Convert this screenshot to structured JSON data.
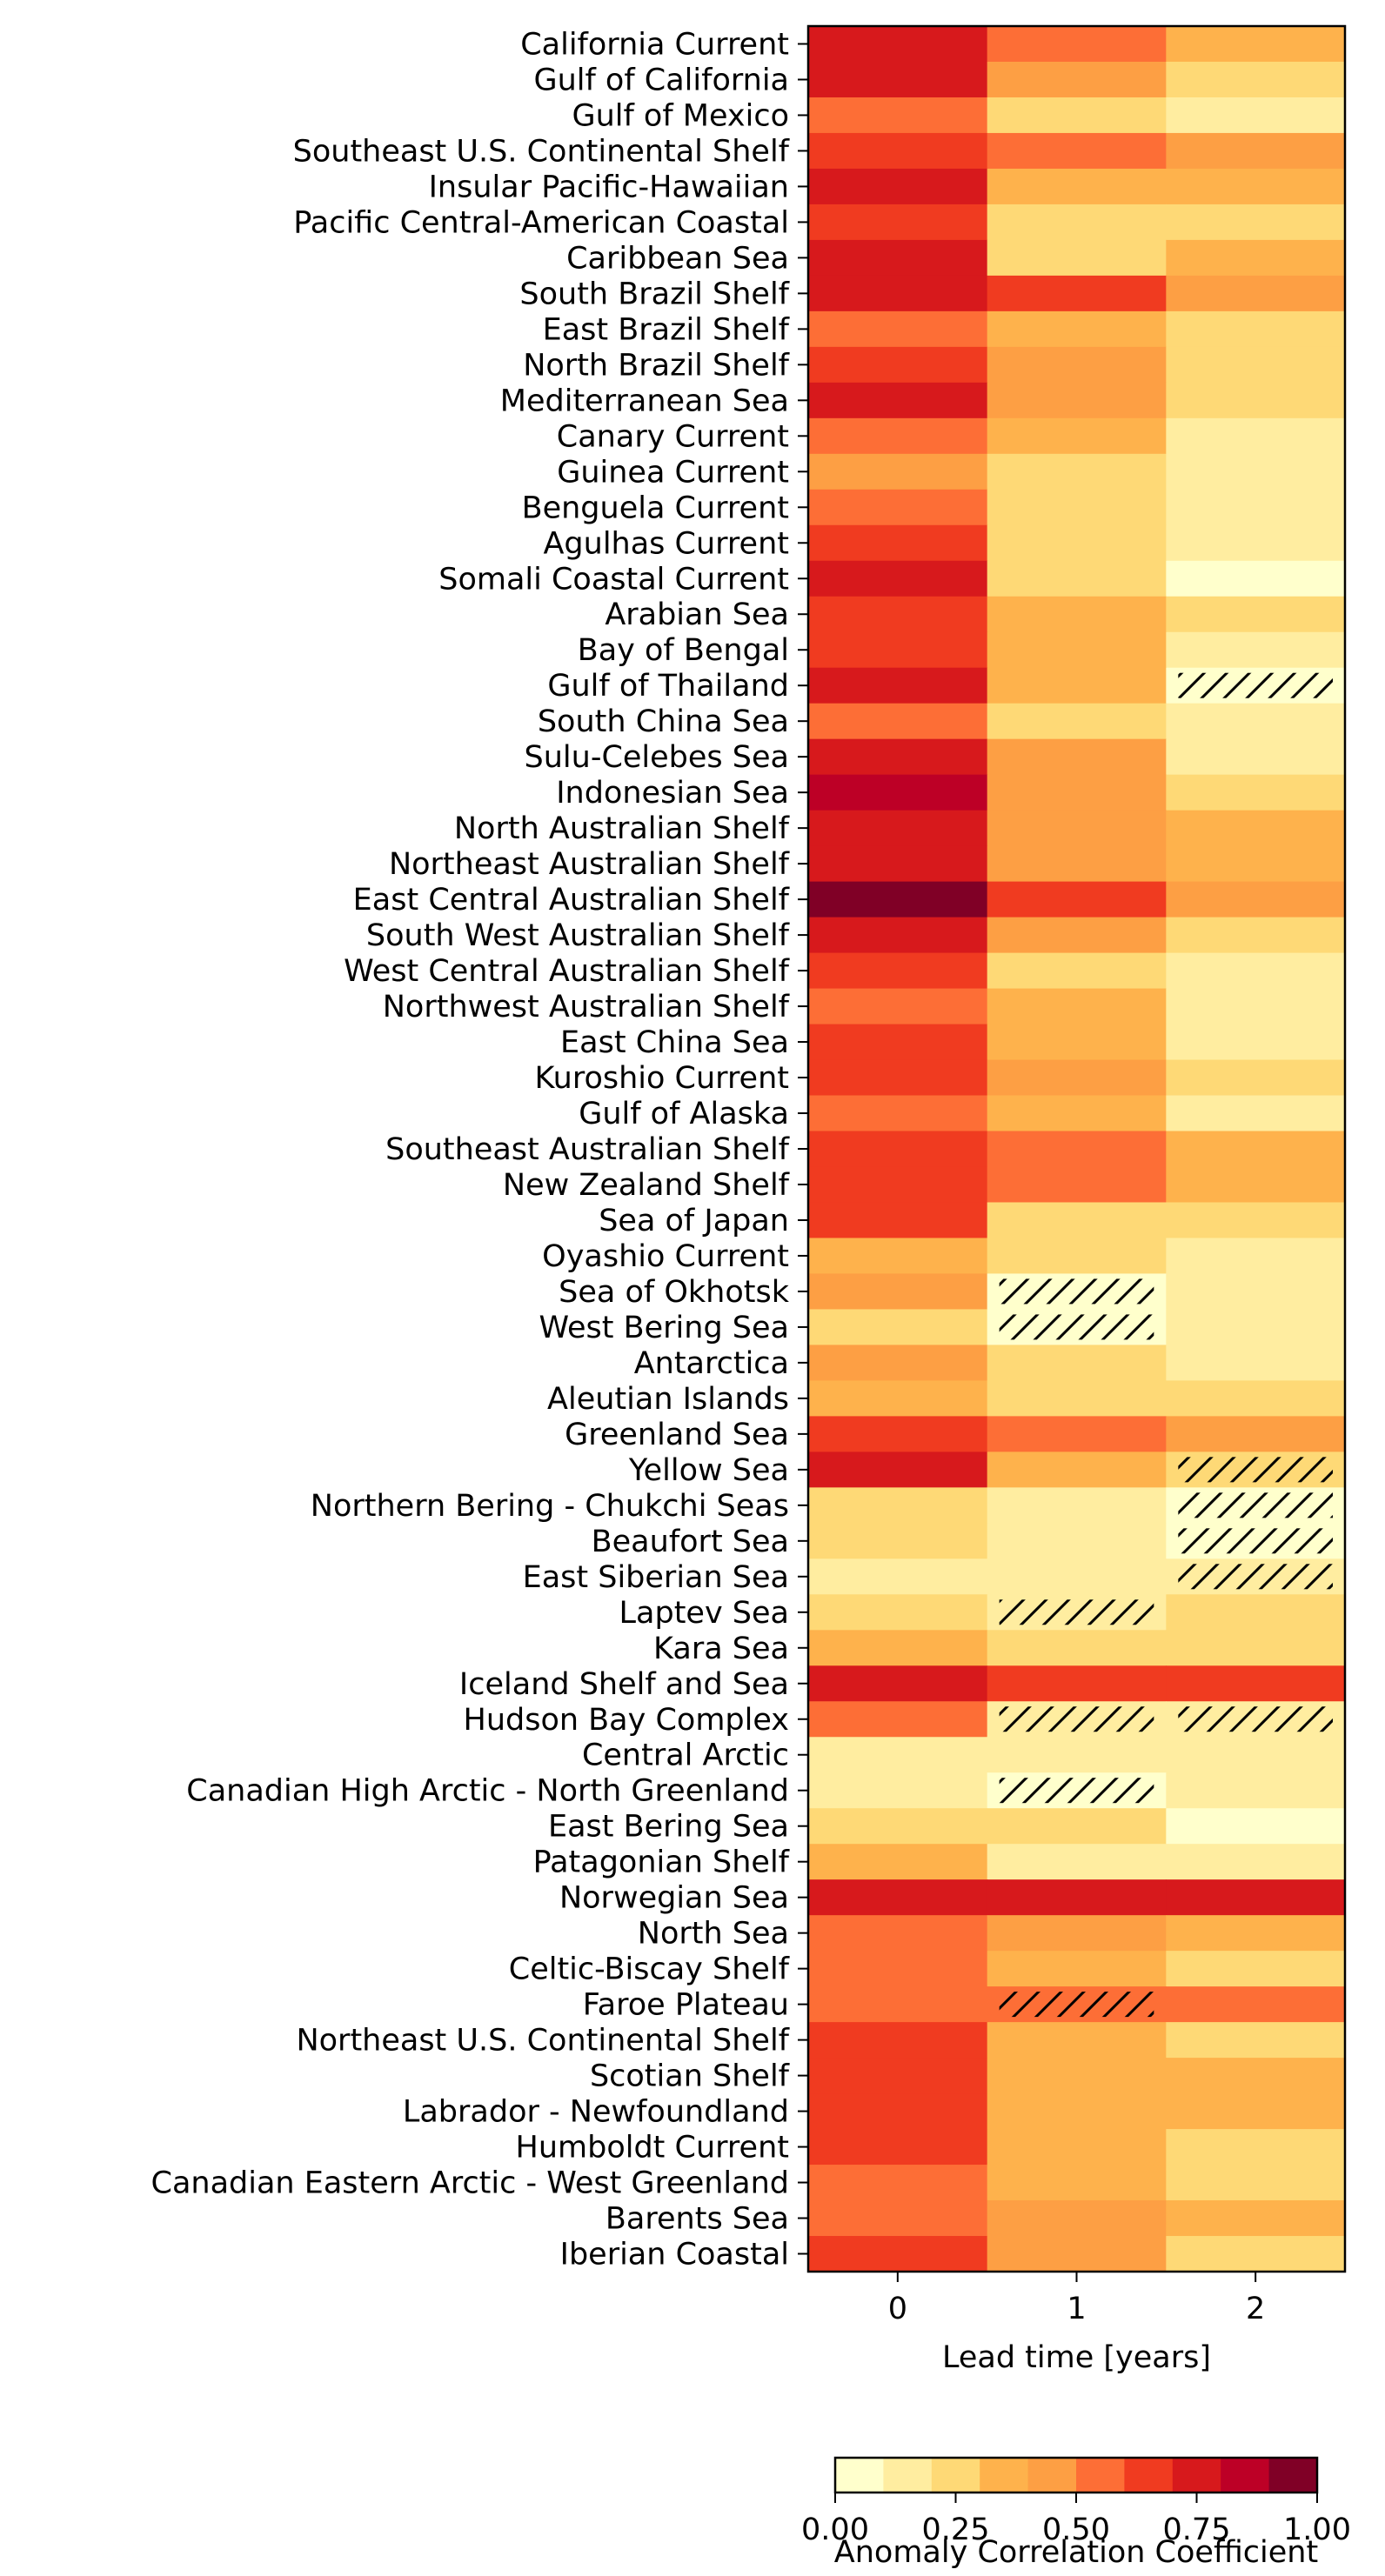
{
  "chart_data": {
    "type": "heatmap",
    "title": "",
    "xlabel": "Lead time [years]",
    "ylabel": "",
    "x_ticks": [
      "0",
      "1",
      "2"
    ],
    "rows": [
      "California Current",
      "Gulf of California",
      "Gulf of Mexico",
      "Southeast U.S. Continental Shelf",
      "Insular Pacific-Hawaiian",
      "Pacific Central-American Coastal",
      "Caribbean Sea",
      "South Brazil Shelf",
      "East Brazil Shelf",
      "North Brazil Shelf",
      "Mediterranean Sea",
      "Canary Current",
      "Guinea Current",
      "Benguela Current",
      "Agulhas Current",
      "Somali Coastal Current",
      "Arabian Sea",
      "Bay of Bengal",
      "Gulf of Thailand",
      "South China Sea",
      "Sulu-Celebes Sea",
      "Indonesian Sea",
      "North Australian Shelf",
      "Northeast Australian Shelf",
      "East Central Australian Shelf",
      "South West Australian Shelf",
      "West Central Australian Shelf",
      "Northwest Australian Shelf",
      "East China Sea",
      "Kuroshio Current",
      "Gulf of Alaska",
      "Southeast Australian Shelf",
      "New Zealand Shelf",
      "Sea of Japan",
      "Oyashio Current",
      "Sea of Okhotsk",
      "West Bering Sea",
      "Antarctica",
      "Aleutian Islands",
      "Greenland Sea",
      "Yellow Sea",
      "Northern Bering - Chukchi Seas",
      "Beaufort Sea",
      "East Siberian Sea",
      "Laptev Sea",
      "Kara Sea",
      "Iceland Shelf and Sea",
      "Hudson Bay Complex",
      "Central Arctic",
      "Canadian High Arctic - North Greenland",
      "East Bering Sea",
      "Patagonian Shelf",
      "Norwegian Sea",
      "North Sea",
      "Celtic-Biscay Shelf",
      "Faroe Plateau",
      "Northeast U.S. Continental Shelf",
      "Scotian Shelf",
      "Labrador - Newfoundland",
      "Humboldt Current",
      "Canadian Eastern Arctic - West Greenland",
      "Barents Sea",
      "Iberian Coastal"
    ],
    "values": [
      [
        0.75,
        0.55,
        0.35
      ],
      [
        0.75,
        0.45,
        0.25
      ],
      [
        0.55,
        0.25,
        0.15
      ],
      [
        0.65,
        0.55,
        0.45
      ],
      [
        0.75,
        0.35,
        0.35
      ],
      [
        0.65,
        0.25,
        0.25
      ],
      [
        0.75,
        0.25,
        0.35
      ],
      [
        0.75,
        0.65,
        0.45
      ],
      [
        0.55,
        0.35,
        0.25
      ],
      [
        0.65,
        0.45,
        0.25
      ],
      [
        0.75,
        0.45,
        0.25
      ],
      [
        0.55,
        0.35,
        0.15
      ],
      [
        0.45,
        0.25,
        0.15
      ],
      [
        0.55,
        0.25,
        0.15
      ],
      [
        0.65,
        0.25,
        0.15
      ],
      [
        0.75,
        0.25,
        0.05
      ],
      [
        0.65,
        0.35,
        0.25
      ],
      [
        0.65,
        0.35,
        0.15
      ],
      [
        0.75,
        0.35,
        0.05
      ],
      [
        0.55,
        0.25,
        0.15
      ],
      [
        0.75,
        0.45,
        0.15
      ],
      [
        0.85,
        0.45,
        0.25
      ],
      [
        0.75,
        0.45,
        0.35
      ],
      [
        0.75,
        0.45,
        0.35
      ],
      [
        0.95,
        0.65,
        0.45
      ],
      [
        0.75,
        0.45,
        0.25
      ],
      [
        0.65,
        0.25,
        0.15
      ],
      [
        0.55,
        0.35,
        0.15
      ],
      [
        0.65,
        0.35,
        0.15
      ],
      [
        0.65,
        0.45,
        0.25
      ],
      [
        0.55,
        0.35,
        0.15
      ],
      [
        0.65,
        0.55,
        0.35
      ],
      [
        0.65,
        0.55,
        0.35
      ],
      [
        0.65,
        0.25,
        0.25
      ],
      [
        0.35,
        0.25,
        0.15
      ],
      [
        0.45,
        0.05,
        0.15
      ],
      [
        0.25,
        0.05,
        0.15
      ],
      [
        0.45,
        0.25,
        0.15
      ],
      [
        0.35,
        0.25,
        0.25
      ],
      [
        0.65,
        0.55,
        0.45
      ],
      [
        0.75,
        0.35,
        0.25
      ],
      [
        0.25,
        0.15,
        0.05
      ],
      [
        0.25,
        0.15,
        0.05
      ],
      [
        0.15,
        0.15,
        0.15
      ],
      [
        0.25,
        0.15,
        0.25
      ],
      [
        0.35,
        0.25,
        0.25
      ],
      [
        0.75,
        0.65,
        0.65
      ],
      [
        0.55,
        0.15,
        0.15
      ],
      [
        0.15,
        0.15,
        0.15
      ],
      [
        0.15,
        0.05,
        0.15
      ],
      [
        0.25,
        0.25,
        0.05
      ],
      [
        0.35,
        0.15,
        0.15
      ],
      [
        0.75,
        0.75,
        0.75
      ],
      [
        0.55,
        0.45,
        0.35
      ],
      [
        0.55,
        0.35,
        0.25
      ],
      [
        0.55,
        0.55,
        0.55
      ],
      [
        0.65,
        0.35,
        0.25
      ],
      [
        0.65,
        0.35,
        0.35
      ],
      [
        0.65,
        0.35,
        0.35
      ],
      [
        0.65,
        0.35,
        0.25
      ],
      [
        0.55,
        0.35,
        0.25
      ],
      [
        0.55,
        0.45,
        0.35
      ],
      [
        0.65,
        0.45,
        0.25
      ]
    ],
    "hatched_cells": [
      [
        18,
        2
      ],
      [
        35,
        1
      ],
      [
        36,
        1
      ],
      [
        40,
        2
      ],
      [
        41,
        2
      ],
      [
        42,
        2
      ],
      [
        43,
        2
      ],
      [
        44,
        1
      ],
      [
        47,
        1
      ],
      [
        47,
        2
      ],
      [
        49,
        1
      ],
      [
        55,
        1
      ]
    ],
    "colormap": "YlOrRd",
    "color_steps": [
      "#ffffcc",
      "#ffeda0",
      "#fed976",
      "#feb24c",
      "#fd9f44",
      "#fd6e36",
      "#f03b20",
      "#d7191c",
      "#bd0026",
      "#800026"
    ],
    "colorbar": {
      "label": "Anomaly Correlation Coefficient",
      "ticks": [
        "0.00",
        "0.25",
        "0.50",
        "0.75",
        "1.00"
      ],
      "range": [
        0,
        1
      ],
      "bins": 10
    },
    "grid": false,
    "legend": "none"
  }
}
